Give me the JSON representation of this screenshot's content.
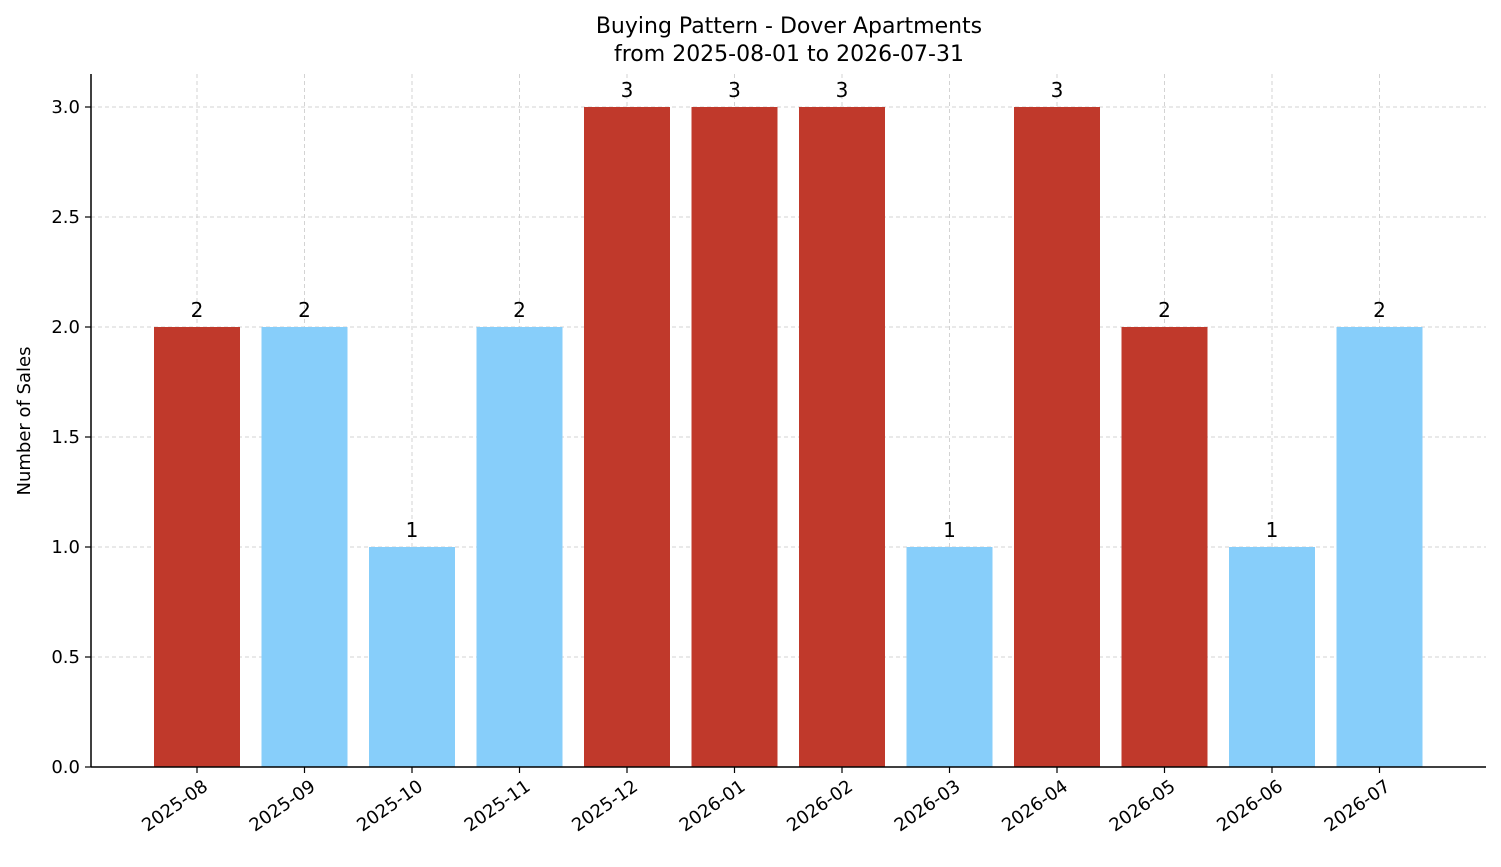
{
  "chart_data": {
    "type": "bar",
    "title": "Buying Pattern - Dover Apartments",
    "subtitle": "from 2025-08-01 to 2026-07-31",
    "xlabel": "",
    "ylabel": "Number of Sales",
    "categories": [
      "2025-08",
      "2025-09",
      "2025-10",
      "2025-11",
      "2025-12",
      "2026-01",
      "2026-02",
      "2026-03",
      "2026-04",
      "2026-05",
      "2026-06",
      "2026-07"
    ],
    "values": [
      2,
      2,
      1,
      2,
      3,
      3,
      3,
      1,
      3,
      2,
      1,
      2
    ],
    "bar_colors": [
      "#c0392b",
      "#87cefa",
      "#87cefa",
      "#87cefa",
      "#c0392b",
      "#c0392b",
      "#c0392b",
      "#87cefa",
      "#c0392b",
      "#c0392b",
      "#87cefa",
      "#87cefa"
    ],
    "ylim": [
      0,
      3.15
    ],
    "yticks": [
      "0.0",
      "0.5",
      "1.0",
      "1.5",
      "2.0",
      "2.5",
      "3.0"
    ],
    "grid": true,
    "data_labels": true
  }
}
